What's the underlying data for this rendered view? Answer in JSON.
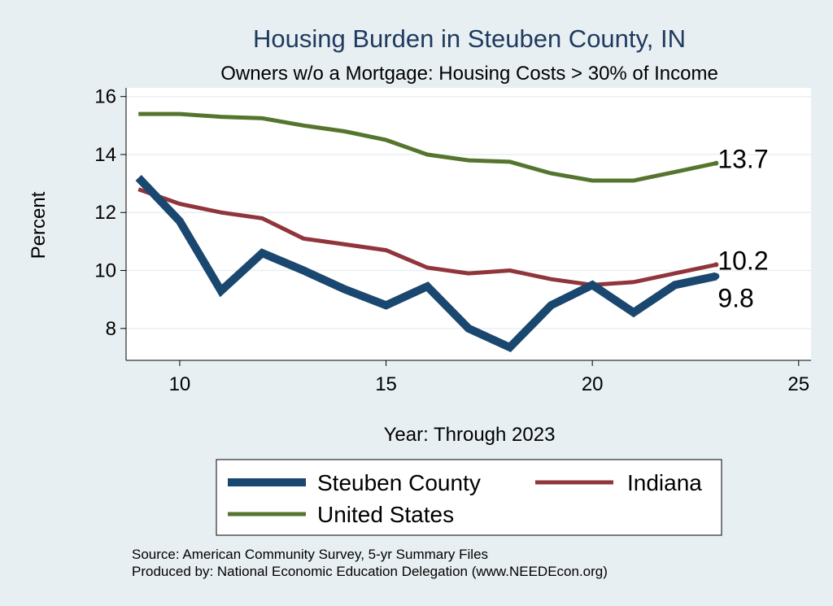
{
  "chart_data": {
    "type": "line",
    "title": "Housing Burden in Steuben County, IN",
    "subtitle": "Owners w/o a Mortgage: Housing Costs > 30% of Income",
    "xlabel": "Year: Through 2023",
    "ylabel": "Percent",
    "xlim": [
      8.7,
      25.3
    ],
    "ylim": [
      6.9,
      16.3
    ],
    "xticks": [
      10,
      15,
      20,
      25
    ],
    "yticks": [
      8,
      10,
      12,
      14,
      16
    ],
    "grid": true,
    "legend_position": "bottom",
    "series": [
      {
        "name": "Steuben County",
        "color": "#1a476f",
        "x": [
          9,
          10,
          11,
          12,
          13,
          14,
          15,
          16,
          17,
          18,
          19,
          20,
          21,
          22,
          23
        ],
        "y": [
          13.2,
          11.7,
          9.3,
          10.6,
          10.0,
          9.35,
          8.8,
          9.45,
          8.0,
          7.35,
          8.8,
          9.5,
          8.55,
          9.5,
          9.8
        ],
        "end_label": "9.8"
      },
      {
        "name": "Indiana",
        "color": "#90353b",
        "x": [
          9,
          10,
          11,
          12,
          13,
          14,
          15,
          16,
          17,
          18,
          19,
          20,
          21,
          22,
          23
        ],
        "y": [
          12.8,
          12.3,
          12.0,
          11.8,
          11.1,
          10.9,
          10.7,
          10.1,
          9.9,
          10.0,
          9.7,
          9.5,
          9.6,
          9.9,
          10.2
        ],
        "end_label": "10.2"
      },
      {
        "name": "United States",
        "color": "#55752f",
        "x": [
          9,
          10,
          11,
          12,
          13,
          14,
          15,
          16,
          17,
          18,
          19,
          20,
          21,
          22,
          23
        ],
        "y": [
          15.4,
          15.4,
          15.3,
          15.25,
          15.0,
          14.8,
          14.5,
          14.0,
          13.8,
          13.75,
          13.35,
          13.1,
          13.1,
          13.4,
          13.7
        ],
        "end_label": "13.7"
      }
    ]
  },
  "footer": {
    "source": "Source: American Community Survey, 5-yr Summary Files",
    "produced_by": "Produced by: National Economic Education Delegation (www.NEEDEcon.org)"
  }
}
